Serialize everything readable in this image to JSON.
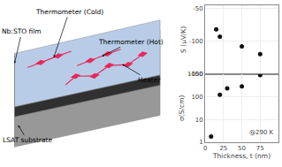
{
  "chart_data": [
    {
      "type": "scatter",
      "x": [
        15,
        20,
        50,
        75
      ],
      "values": [
        -82,
        -93,
        -108,
        -120
      ],
      "color": "#111111",
      "ylabel": "S (μV/K)",
      "xlim": [
        0,
        100
      ],
      "xticks": [
        0,
        25,
        50,
        75,
        100
      ],
      "ylim": [
        -150,
        -45
      ],
      "yticks": [
        -150,
        -100,
        -50
      ],
      "grid": true,
      "tick_labels": "y"
    },
    {
      "type": "scatter",
      "x": [
        8,
        20,
        30,
        50,
        75
      ],
      "values": [
        1.8,
        120,
        230,
        280,
        870
      ],
      "color": "#111111",
      "xlabel": "Thickness, t (nm)",
      "ylabel": "σ(S/cm)",
      "xlim": [
        0,
        100
      ],
      "xticks": [
        0,
        25,
        50,
        75,
        100
      ],
      "ylim": [
        1,
        1000
      ],
      "yticks": [
        1,
        10,
        100,
        1000
      ],
      "log": "y",
      "grid": true,
      "annotations": [
        "@290 K"
      ]
    },
    {
      "type": "diagram",
      "annotations": [
        "Thermometer (Cold)",
        "Thermometer (Hot)",
        "Heater",
        "Nb:STO film",
        "LSAT substrate"
      ]
    }
  ]
}
